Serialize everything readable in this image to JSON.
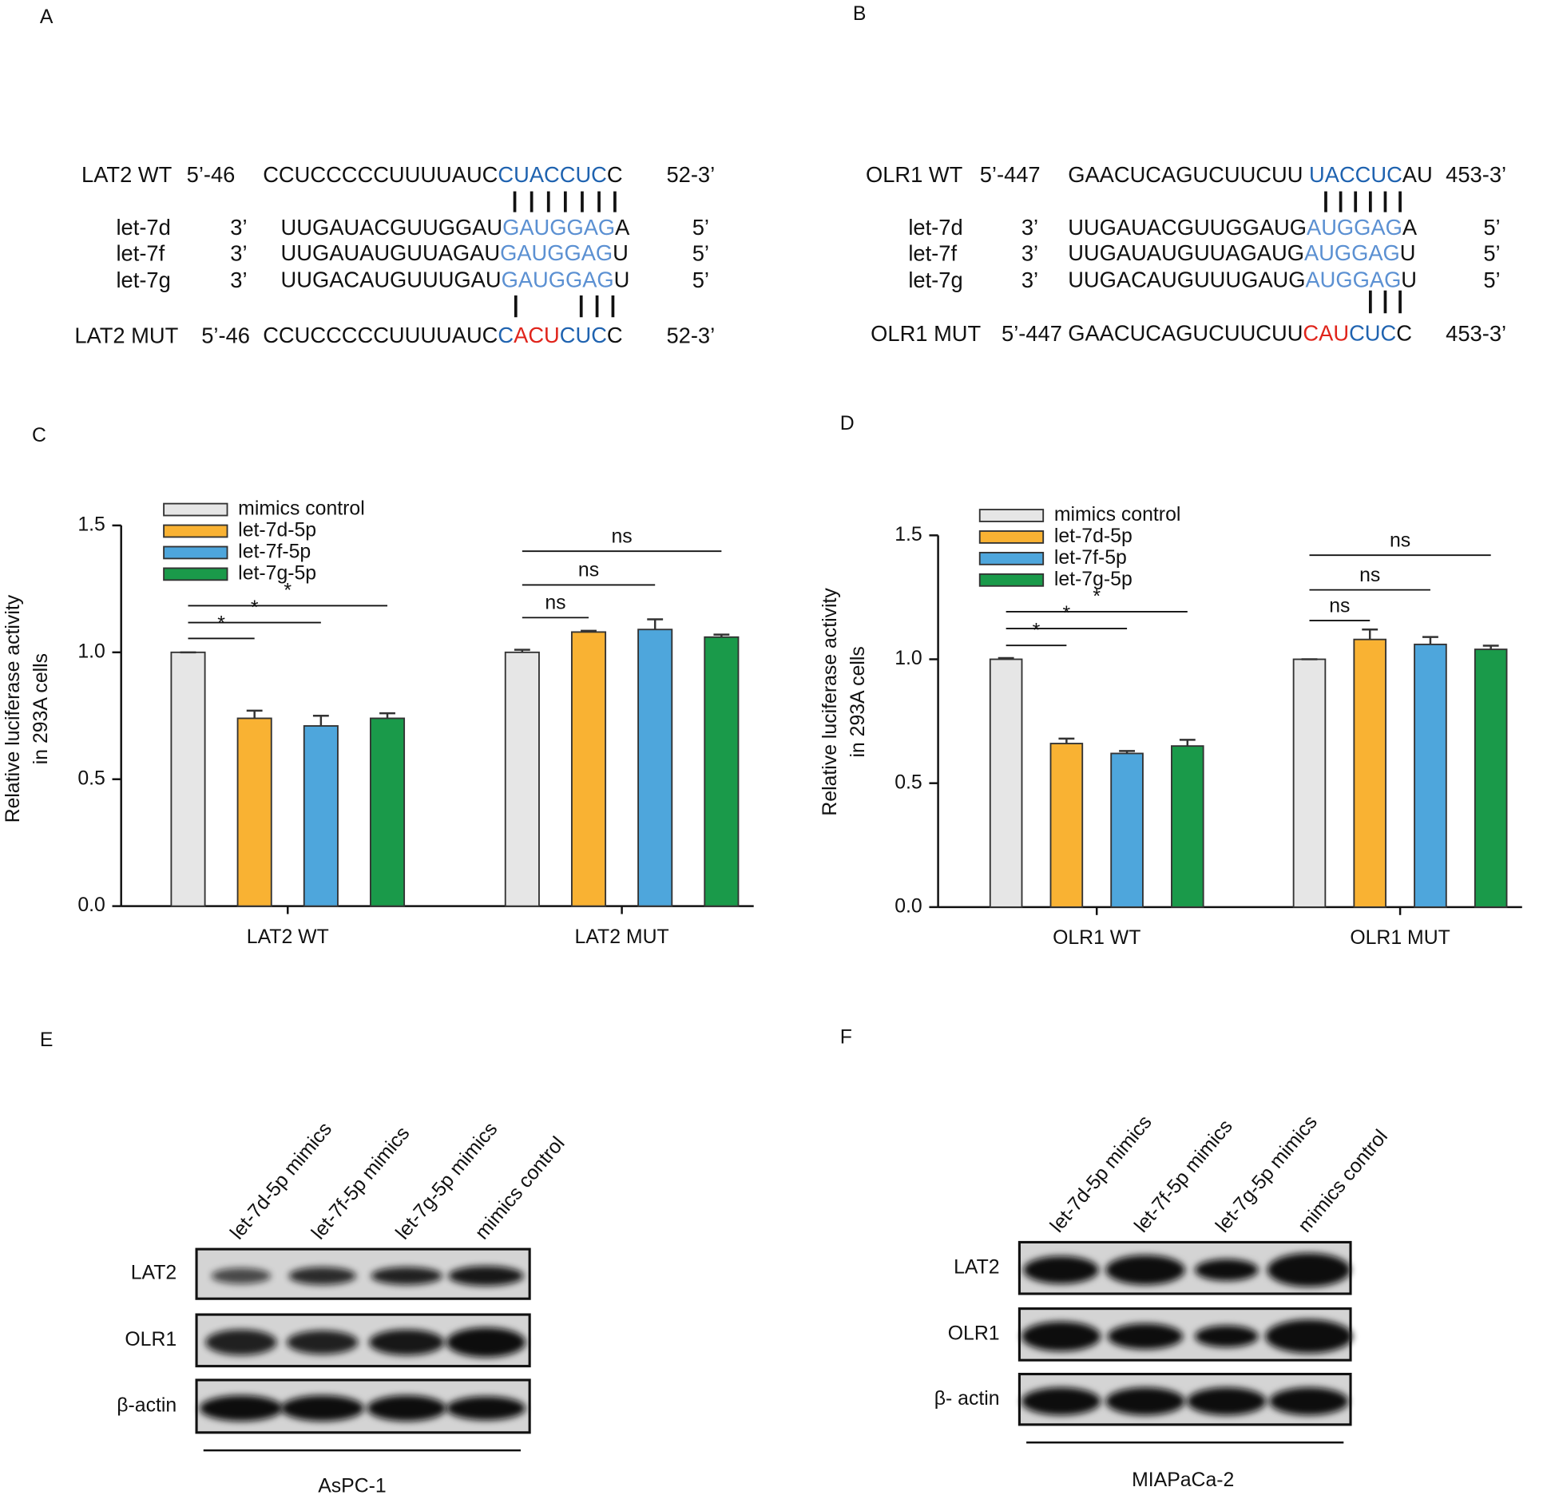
{
  "panel_labels": [
    "A",
    "B",
    "C",
    "D",
    "E",
    "F"
  ],
  "sequence_panels": [
    {
      "rows": [
        {
          "name": "LAT2 WT",
          "end5": "5’-46",
          "segments": [
            {
              "text": "CCUCCCCCUUUUAUC",
              "color": "#111111"
            },
            {
              "text": "CUACCUC",
              "color": "#1f63b0"
            },
            {
              "text": "C",
              "color": "#111111"
            }
          ],
          "end3": "52-3’"
        },
        {
          "name": "let-7d",
          "end5": "3’",
          "segments": [
            {
              "text": "UUGAUACGUUGGAU",
              "color": "#111111"
            },
            {
              "text": "GAUGGAG",
              "color": "#5b90d2"
            },
            {
              "text": "A",
              "color": "#111111"
            }
          ],
          "end3": "5’"
        },
        {
          "name": "let-7f",
          "end5": "3’",
          "segments": [
            {
              "text": "UUGAUAUGUUAGAU",
              "color": "#111111"
            },
            {
              "text": "GAUGGAG",
              "color": "#5b90d2"
            },
            {
              "text": "U",
              "color": "#111111"
            }
          ],
          "end3": "5’"
        },
        {
          "name": "let-7g",
          "end5": "3’",
          "segments": [
            {
              "text": "UUGACAUGUUUGAU",
              "color": "#111111"
            },
            {
              "text": "GAUGGAG",
              "color": "#5b90d2"
            },
            {
              "text": "U",
              "color": "#111111"
            }
          ],
          "end3": "5’"
        },
        {
          "name": "LAT2 MUT",
          "end5": "5’-46",
          "segments": [
            {
              "text": "CCUCCCCCUUUUAUC",
              "color": "#111111"
            },
            {
              "text": "C",
              "color": "#1f63b0"
            },
            {
              "text": "ACU",
              "color": "#e0241b"
            },
            {
              "text": "CUC",
              "color": "#1f63b0"
            },
            {
              "text": "C",
              "color": "#111111"
            }
          ],
          "end3": "52-3’"
        }
      ]
    },
    {
      "rows": [
        {
          "name": "OLR1 WT",
          "end5": "5’-447",
          "segments": [
            {
              "text": "GAACUCAGUCUUCUU ",
              "color": "#111111"
            },
            {
              "text": "UACCUC",
              "color": "#1f63b0"
            },
            {
              "text": "AU",
              "color": "#111111"
            }
          ],
          "end3": "453-3’"
        },
        {
          "name": "let-7d",
          "end5": "3’",
          "segments": [
            {
              "text": "UUGAUACGUUGGAUG",
              "color": "#111111"
            },
            {
              "text": "AUGGAG",
              "color": "#5b90d2"
            },
            {
              "text": "A",
              "color": "#111111"
            }
          ],
          "end3": "5’"
        },
        {
          "name": "let-7f",
          "end5": "3’",
          "segments": [
            {
              "text": "UUGAUAUGUUAGAUG",
              "color": "#111111"
            },
            {
              "text": "AUGGAG",
              "color": "#5b90d2"
            },
            {
              "text": "U",
              "color": "#111111"
            }
          ],
          "end3": "5’"
        },
        {
          "name": "let-7g",
          "end5": "3’",
          "segments": [
            {
              "text": "UUGACAUGUUUGAUG",
              "color": "#111111"
            },
            {
              "text": "AUGGAG",
              "color": "#5b90d2"
            },
            {
              "text": "U",
              "color": "#111111"
            }
          ],
          "end3": "5’"
        },
        {
          "name": "OLR1 MUT",
          "end5": "5’-447",
          "segments": [
            {
              "text": "GAACUCAGUCUUCUU",
              "color": "#111111"
            },
            {
              "text": "CAU",
              "color": "#e0241b"
            },
            {
              "text": "CUC",
              "color": "#1f63b0"
            },
            {
              "text": "C",
              "color": "#111111"
            }
          ],
          "end3": "453-3’"
        }
      ]
    }
  ],
  "chart_data": [
    {
      "type": "bar",
      "ylabel": [
        "Relative luciferase activity",
        "in 293A cells"
      ],
      "categories": [
        "LAT2 WT",
        "LAT2 MUT"
      ],
      "series": [
        {
          "name": "mimics control",
          "color": "#e6e6e6",
          "values": [
            1.0,
            1.0
          ],
          "errors": [
            0.0,
            0.01
          ]
        },
        {
          "name": "let-7d-5p",
          "color": "#f9b233",
          "values": [
            0.74,
            1.08
          ],
          "errors": [
            0.03,
            0.005
          ]
        },
        {
          "name": "let-7f-5p",
          "color": "#4ea6dc",
          "values": [
            0.71,
            1.09
          ],
          "errors": [
            0.04,
            0.04
          ]
        },
        {
          "name": "let-7g-5p",
          "color": "#1a9a4a",
          "values": [
            0.74,
            1.06
          ],
          "errors": [
            0.02,
            0.01
          ]
        }
      ],
      "ylim": [
        0,
        1.5
      ],
      "yticks": [
        {
          "value": 0,
          "label": "0.0"
        },
        {
          "value": 0.5,
          "label": "0.5"
        },
        {
          "value": 1,
          "label": "1.0"
        },
        {
          "value": 1.5,
          "label": "1.5"
        }
      ],
      "annotations": [
        "*",
        "*",
        "*",
        "ns",
        "ns",
        "ns"
      ]
    },
    {
      "type": "bar",
      "ylabel": [
        "Relative luciferase activity",
        "in 293A cells"
      ],
      "categories": [
        "OLR1 WT",
        "OLR1 MUT"
      ],
      "series": [
        {
          "name": "mimics control",
          "color": "#e6e6e6",
          "values": [
            1.0,
            1.0
          ],
          "errors": [
            0.005,
            0.0
          ]
        },
        {
          "name": "let-7d-5p",
          "color": "#f9b233",
          "values": [
            0.66,
            1.08
          ],
          "errors": [
            0.02,
            0.04
          ]
        },
        {
          "name": "let-7f-5p",
          "color": "#4ea6dc",
          "values": [
            0.62,
            1.06
          ],
          "errors": [
            0.01,
            0.03
          ]
        },
        {
          "name": "let-7g-5p",
          "color": "#1a9a4a",
          "values": [
            0.65,
            1.04
          ],
          "errors": [
            0.025,
            0.015
          ]
        }
      ],
      "ylim": [
        0,
        1.5
      ],
      "yticks": [
        {
          "value": 0,
          "label": "0.0"
        },
        {
          "value": 0.5,
          "label": "0.5"
        },
        {
          "value": 1,
          "label": "1.0"
        },
        {
          "value": 1.5,
          "label": "1.5"
        }
      ],
      "annotations": [
        "*",
        "*",
        "*",
        "ns",
        "ns",
        "ns"
      ]
    }
  ],
  "blots": [
    {
      "lanes": [
        "let-7d-5p mimics",
        "let-7f-5p mimics",
        "let-7g-5p mimics",
        "mimics control"
      ],
      "rows": [
        "LAT2",
        "OLR1",
        "β-actin"
      ],
      "cell_line": "AsPC-1"
    },
    {
      "lanes": [
        "let-7d-5p mimics",
        "let-7f-5p mimics",
        "let-7g-5p mimics",
        "mimics control"
      ],
      "rows": [
        "LAT2",
        "OLR1",
        "β- actin"
      ],
      "cell_line": "MIAPaCa-2"
    }
  ]
}
